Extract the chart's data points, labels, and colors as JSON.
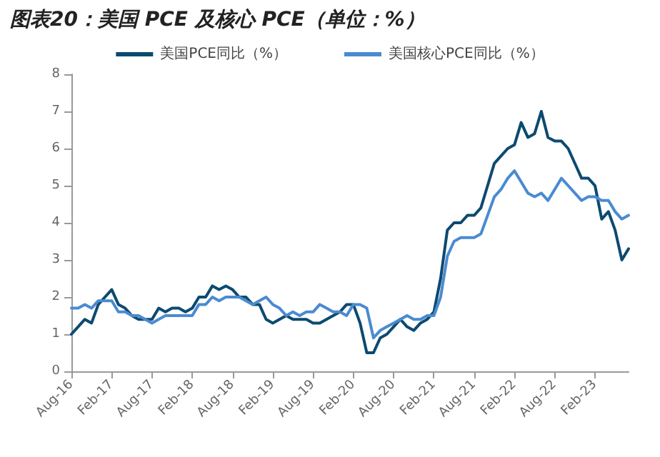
{
  "chart_data": {
    "type": "line",
    "title": "图表20：美国 PCE 及核心 PCE（单位：%）",
    "categories": [
      "Aug-16",
      null,
      null,
      null,
      null,
      null,
      "Feb-17",
      null,
      null,
      null,
      null,
      null,
      "Aug-17",
      null,
      null,
      null,
      null,
      null,
      "Feb-18",
      null,
      null,
      null,
      null,
      null,
      "Aug-18",
      null,
      null,
      null,
      null,
      null,
      "Feb-19",
      null,
      null,
      null,
      null,
      null,
      "Aug-19",
      null,
      null,
      null,
      null,
      null,
      "Feb-20",
      null,
      null,
      null,
      null,
      null,
      "Aug-20",
      null,
      null,
      null,
      null,
      null,
      "Feb-21",
      null,
      null,
      null,
      null,
      null,
      "Aug-21",
      null,
      null,
      null,
      null,
      null,
      "Feb-22",
      null,
      null,
      null,
      null,
      null,
      "Aug-22",
      null,
      null,
      null,
      null,
      null,
      "Feb-23",
      null,
      null,
      null,
      null,
      null
    ],
    "series": [
      {
        "name": "美国PCE同比（%）",
        "color": "#0d4a70",
        "values": [
          1.0,
          1.2,
          1.4,
          1.3,
          1.8,
          2.0,
          2.2,
          1.8,
          1.7,
          1.5,
          1.4,
          1.4,
          1.4,
          1.7,
          1.6,
          1.7,
          1.7,
          1.6,
          1.7,
          2.0,
          2.0,
          2.3,
          2.2,
          2.3,
          2.2,
          2.0,
          2.0,
          1.8,
          1.8,
          1.4,
          1.3,
          1.4,
          1.5,
          1.4,
          1.4,
          1.4,
          1.3,
          1.3,
          1.4,
          1.5,
          1.6,
          1.8,
          1.8,
          1.3,
          0.5,
          0.5,
          0.9,
          1.0,
          1.2,
          1.4,
          1.2,
          1.1,
          1.3,
          1.4,
          1.6,
          2.5,
          3.8,
          4.0,
          4.0,
          4.2,
          4.2,
          4.4,
          5.0,
          5.6,
          5.8,
          6.0,
          6.1,
          6.7,
          6.3,
          6.4,
          7.0,
          6.3,
          6.2,
          6.2,
          6.0,
          5.6,
          5.2,
          5.2,
          5.0,
          4.1,
          4.3,
          3.8,
          3.0,
          3.3
        ]
      },
      {
        "name": "美国核心PCE同比（%）",
        "color": "#4a8bd0",
        "values": [
          1.7,
          1.7,
          1.8,
          1.7,
          1.9,
          1.9,
          1.9,
          1.6,
          1.6,
          1.5,
          1.5,
          1.4,
          1.3,
          1.4,
          1.5,
          1.5,
          1.5,
          1.5,
          1.5,
          1.8,
          1.8,
          2.0,
          1.9,
          2.0,
          2.0,
          2.0,
          1.9,
          1.8,
          1.9,
          2.0,
          1.8,
          1.7,
          1.5,
          1.6,
          1.5,
          1.6,
          1.6,
          1.8,
          1.7,
          1.6,
          1.6,
          1.5,
          1.8,
          1.8,
          1.7,
          0.9,
          1.1,
          1.2,
          1.3,
          1.4,
          1.5,
          1.4,
          1.4,
          1.5,
          1.5,
          2.0,
          3.1,
          3.5,
          3.6,
          3.6,
          3.6,
          3.7,
          4.2,
          4.7,
          4.9,
          5.2,
          5.4,
          5.1,
          4.8,
          4.7,
          4.8,
          4.6,
          4.9,
          5.2,
          5.0,
          4.8,
          4.6,
          4.7,
          4.7,
          4.6,
          4.6,
          4.3,
          4.1,
          4.2
        ]
      }
    ],
    "ylim": [
      0,
      8
    ],
    "yticks": [
      0,
      1,
      2,
      3,
      4,
      5,
      6,
      7,
      8
    ],
    "grid": false,
    "legend": "top",
    "marker": "none",
    "line_style": "solid"
  }
}
